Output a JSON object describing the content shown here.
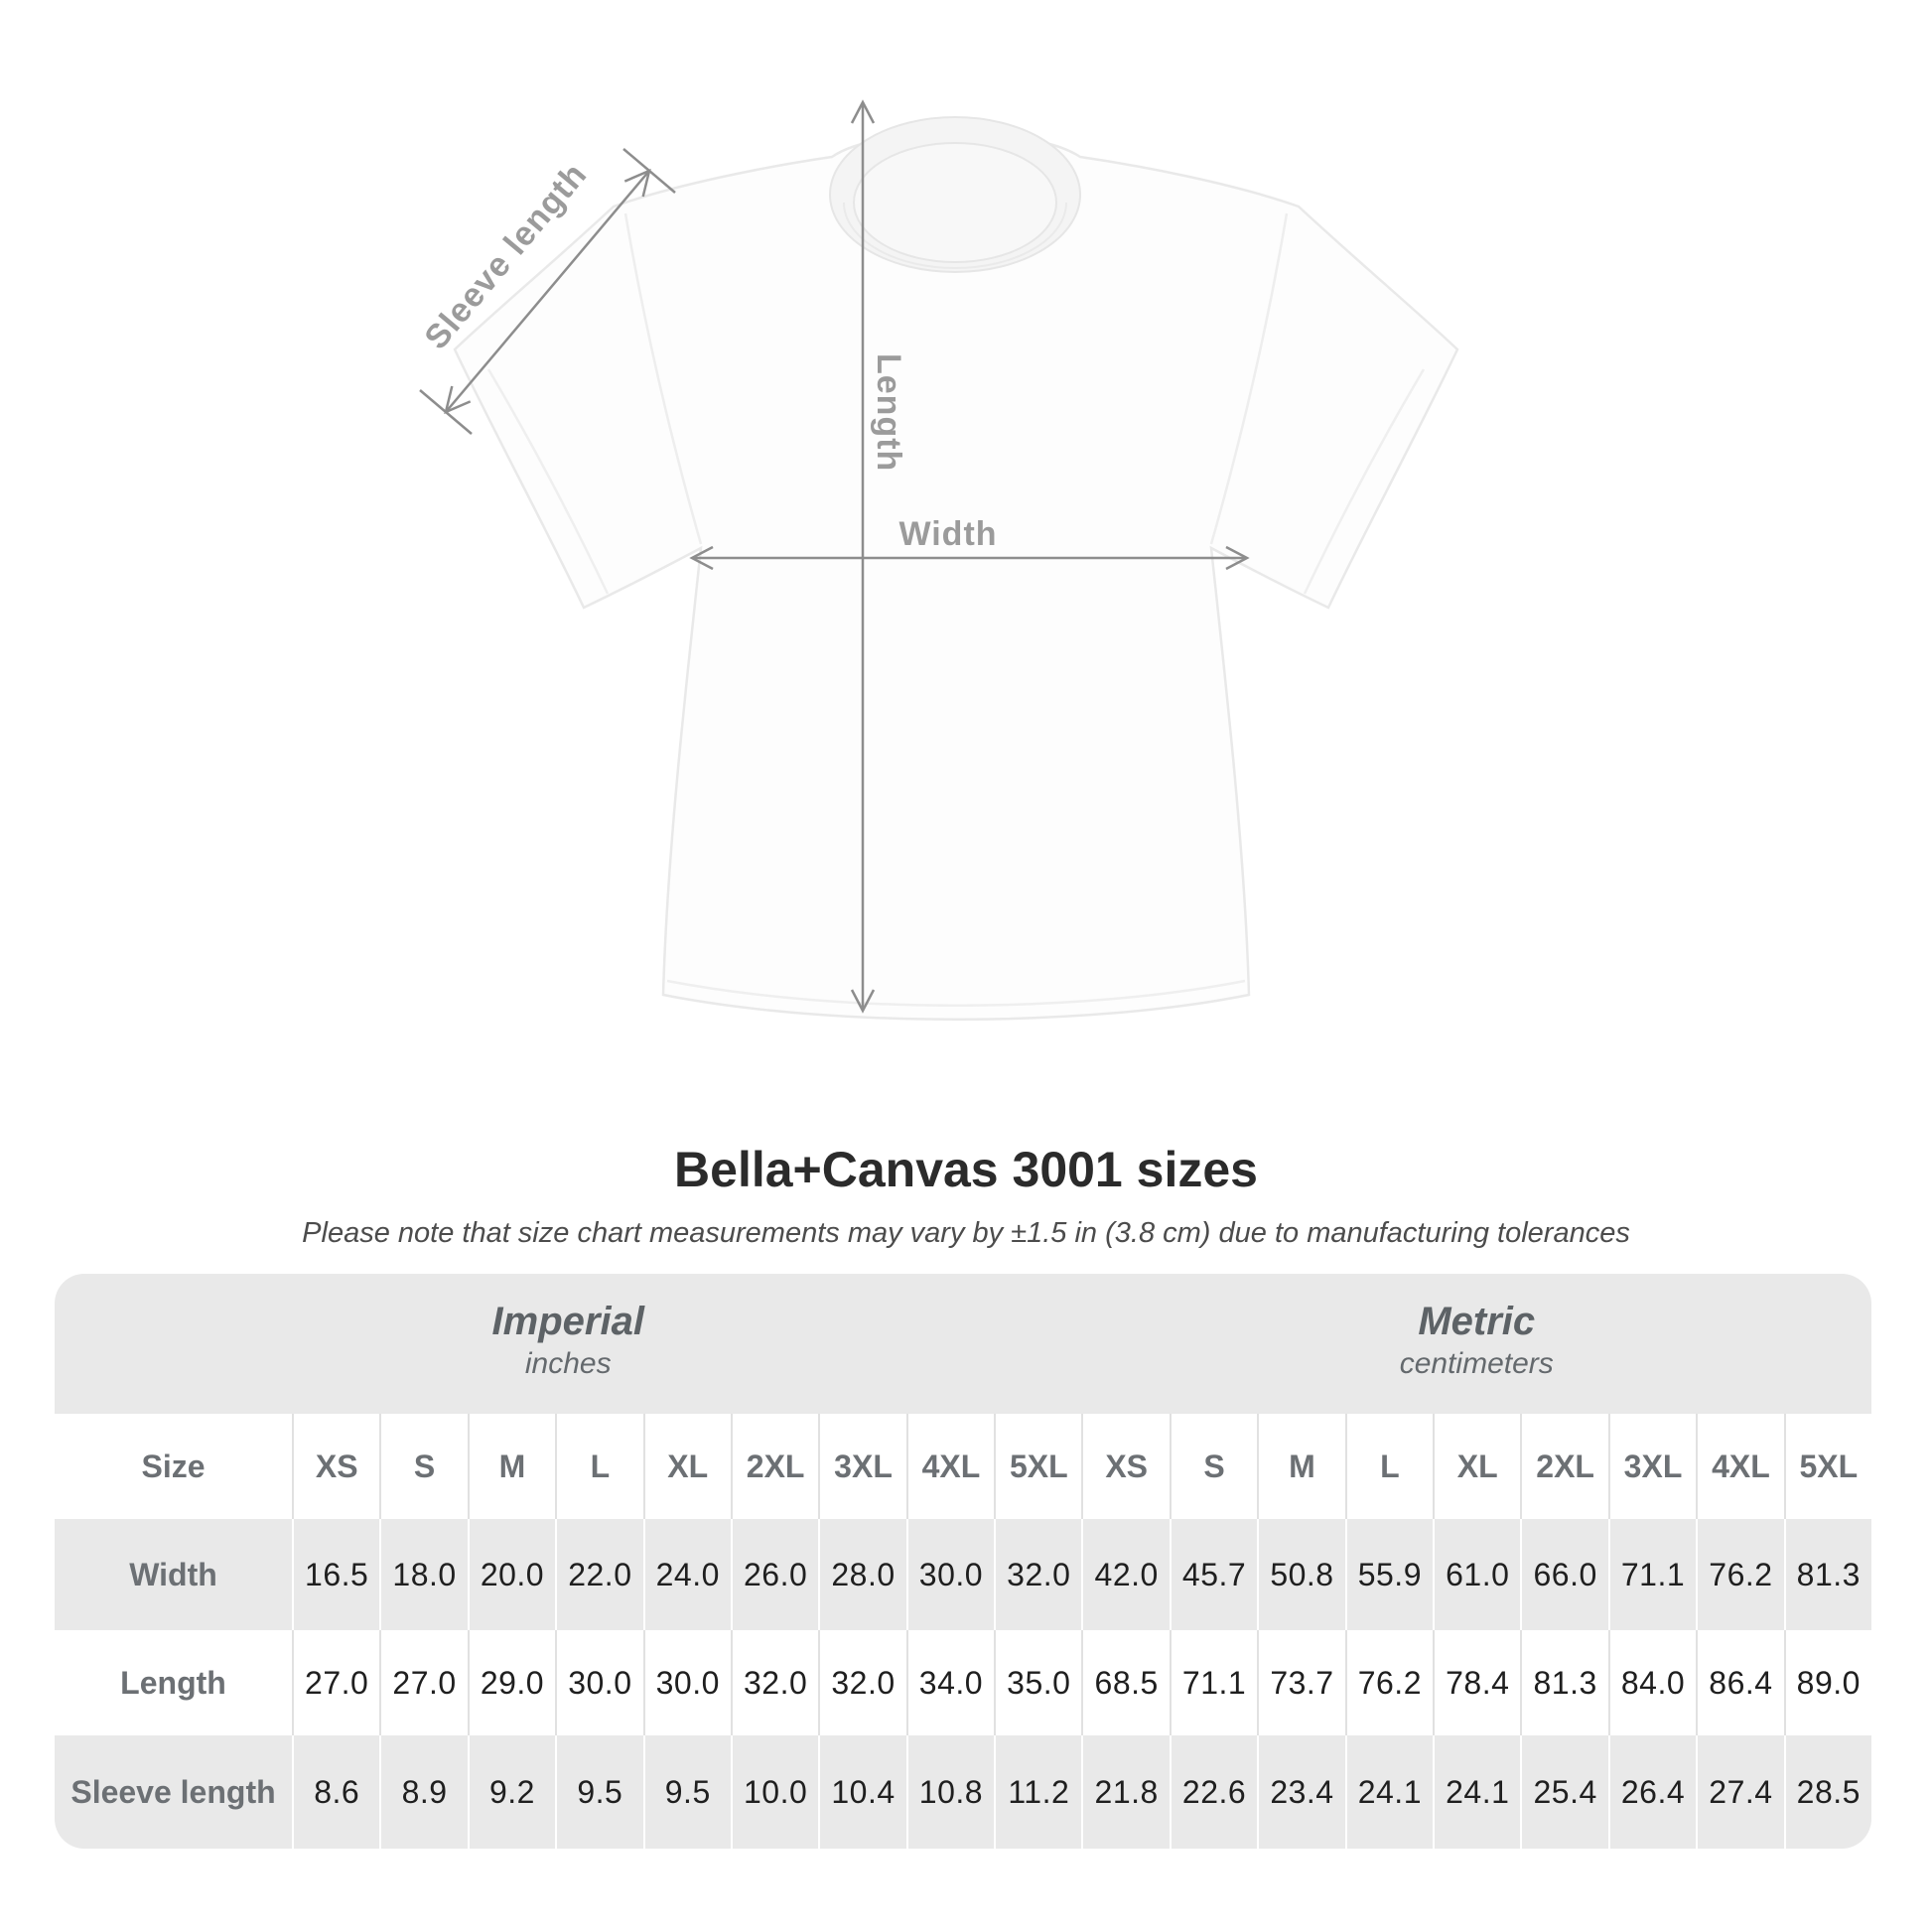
{
  "diagram": {
    "sleeve_length_label": "Sleeve length",
    "length_label": "Length",
    "width_label": "Width"
  },
  "heading": {
    "title": "Bella+Canvas 3001 sizes",
    "subtitle": "Please note that size chart measurements may vary by ±1.5 in (3.8 cm) due to manufacturing tolerances"
  },
  "table": {
    "groups": [
      {
        "name": "Imperial",
        "unit": "inches"
      },
      {
        "name": "Metric",
        "unit": "centimeters"
      }
    ],
    "corner_label": "Size",
    "size_headers": [
      "XS",
      "S",
      "M",
      "L",
      "XL",
      "2XL",
      "3XL",
      "4XL",
      "5XL",
      "XS",
      "S",
      "M",
      "L",
      "XL",
      "2XL",
      "3XL",
      "4XL",
      "5XL"
    ],
    "rows": [
      {
        "label": "Width",
        "values": [
          "16.5",
          "18.0",
          "20.0",
          "22.0",
          "24.0",
          "26.0",
          "28.0",
          "30.0",
          "32.0",
          "42.0",
          "45.7",
          "50.8",
          "55.9",
          "61.0",
          "66.0",
          "71.1",
          "76.2",
          "81.3"
        ]
      },
      {
        "label": "Length",
        "values": [
          "27.0",
          "27.0",
          "29.0",
          "30.0",
          "30.0",
          "32.0",
          "32.0",
          "34.0",
          "35.0",
          "68.5",
          "71.1",
          "73.7",
          "76.2",
          "78.4",
          "81.3",
          "84.0",
          "86.4",
          "89.0"
        ]
      },
      {
        "label": "Sleeve length",
        "values": [
          "8.6",
          "8.9",
          "9.2",
          "9.5",
          "9.5",
          "10.0",
          "10.4",
          "10.8",
          "11.2",
          "21.8",
          "22.6",
          "23.4",
          "24.1",
          "24.1",
          "25.4",
          "26.4",
          "27.4",
          "28.5"
        ]
      }
    ]
  },
  "colors": {
    "band_gray": "#e9e9e9",
    "label_gray": "#6c7074",
    "value_dark": "#1f1f1f",
    "annotation_text": "#9b9b9b",
    "arrow_gray": "#8d8d8d",
    "title_dark": "#2b2b2b"
  },
  "chart_data": {
    "type": "table",
    "title": "Bella+Canvas 3001 sizes",
    "note": "Please note that size chart measurements may vary by ±1.5 in (3.8 cm) due to manufacturing tolerances",
    "unit_groups": [
      {
        "name": "Imperial",
        "unit": "inches",
        "sizes": [
          "XS",
          "S",
          "M",
          "L",
          "XL",
          "2XL",
          "3XL",
          "4XL",
          "5XL"
        ],
        "width": [
          16.5,
          18.0,
          20.0,
          22.0,
          24.0,
          26.0,
          28.0,
          30.0,
          32.0
        ],
        "length": [
          27.0,
          27.0,
          29.0,
          30.0,
          30.0,
          32.0,
          32.0,
          34.0,
          35.0
        ],
        "sleeve_length": [
          8.6,
          8.9,
          9.2,
          9.5,
          9.5,
          10.0,
          10.4,
          10.8,
          11.2
        ]
      },
      {
        "name": "Metric",
        "unit": "centimeters",
        "sizes": [
          "XS",
          "S",
          "M",
          "L",
          "XL",
          "2XL",
          "3XL",
          "4XL",
          "5XL"
        ],
        "width": [
          42.0,
          45.7,
          50.8,
          55.9,
          61.0,
          66.0,
          71.1,
          76.2,
          81.3
        ],
        "length": [
          68.5,
          71.1,
          73.7,
          76.2,
          78.4,
          81.3,
          84.0,
          86.4,
          89.0
        ],
        "sleeve_length": [
          21.8,
          22.6,
          23.4,
          24.1,
          24.1,
          25.4,
          26.4,
          27.4,
          28.5
        ]
      }
    ],
    "measured_dimensions": [
      "Width",
      "Length",
      "Sleeve length"
    ]
  }
}
